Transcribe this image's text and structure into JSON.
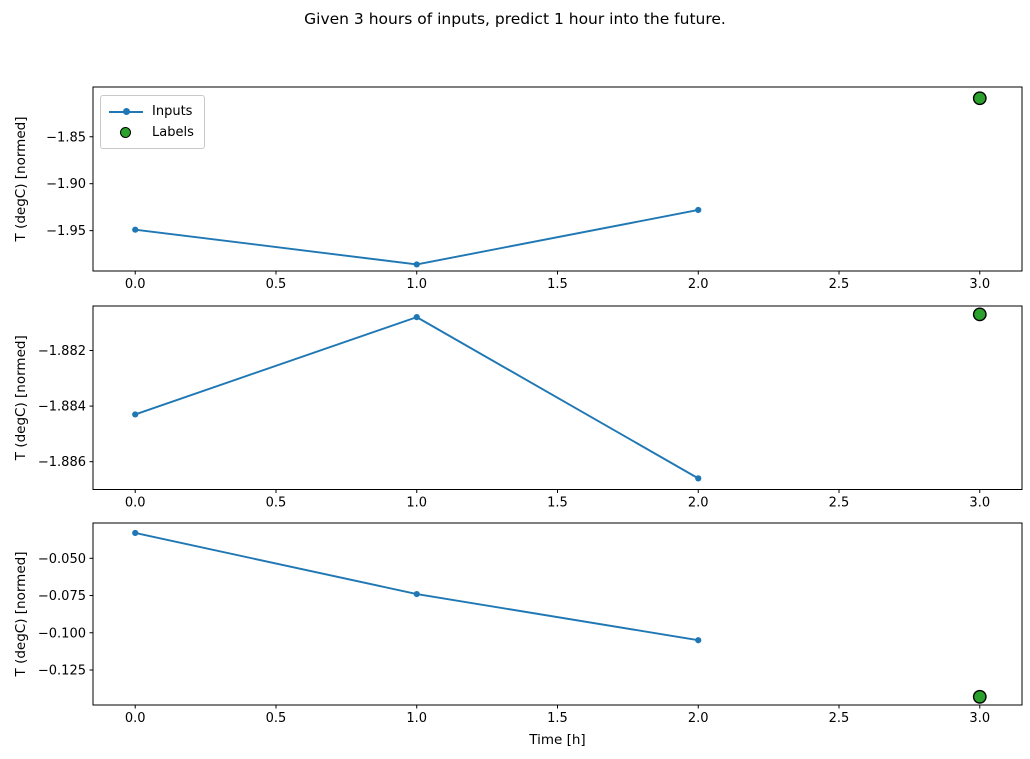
{
  "figure": {
    "title": "Given 3 hours of inputs, predict 1 hour into the future.",
    "background": "#ffffff"
  },
  "legend": {
    "position": "upper-left",
    "items": [
      {
        "label": "Inputs",
        "marker": "line-dot",
        "color": "#1f77b4"
      },
      {
        "label": "Labels",
        "marker": "circle",
        "color": "#2ca02c",
        "edge_color": "#000000"
      }
    ]
  },
  "chart_data": [
    {
      "type": "line",
      "title": "",
      "xlabel": "",
      "ylabel": "T (degC) [normed]",
      "xlim": [
        -0.15,
        3.15
      ],
      "ylim": [
        -1.993,
        -1.797
      ],
      "grid": false,
      "xtick_values": [
        0.0,
        0.5,
        1.0,
        1.5,
        2.0,
        2.5,
        3.0
      ],
      "xtick_labels": [
        "0.0",
        "0.5",
        "1.0",
        "1.5",
        "2.0",
        "2.5",
        "3.0"
      ],
      "ytick_values": [
        -1.85,
        -1.9,
        -1.95
      ],
      "ytick_labels": [
        "−1.85",
        "−1.90",
        "−1.95"
      ],
      "series": [
        {
          "name": "Inputs",
          "type": "line",
          "color": "#1f77b4",
          "x": [
            0,
            1,
            2
          ],
          "y": [
            -1.949,
            -1.986,
            -1.928
          ]
        },
        {
          "name": "Labels",
          "type": "scatter",
          "color": "#2ca02c",
          "edge_color": "#000000",
          "x": [
            3
          ],
          "y": [
            -1.809
          ]
        }
      ],
      "show_legend": true
    },
    {
      "type": "line",
      "title": "",
      "xlabel": "",
      "ylabel": "T (degC) [normed]",
      "xlim": [
        -0.15,
        3.15
      ],
      "ylim": [
        -1.887,
        -1.8804
      ],
      "grid": false,
      "xtick_values": [
        0.0,
        0.5,
        1.0,
        1.5,
        2.0,
        2.5,
        3.0
      ],
      "xtick_labels": [
        "0.0",
        "0.5",
        "1.0",
        "1.5",
        "2.0",
        "2.5",
        "3.0"
      ],
      "ytick_values": [
        -1.882,
        -1.884,
        -1.886
      ],
      "ytick_labels": [
        "−1.882",
        "−1.884",
        "−1.886"
      ],
      "series": [
        {
          "name": "Inputs",
          "type": "line",
          "color": "#1f77b4",
          "x": [
            0,
            1,
            2
          ],
          "y": [
            -1.8843,
            -1.8808,
            -1.8866
          ]
        },
        {
          "name": "Labels",
          "type": "scatter",
          "color": "#2ca02c",
          "edge_color": "#000000",
          "x": [
            3
          ],
          "y": [
            -1.8807
          ]
        }
      ],
      "show_legend": false
    },
    {
      "type": "line",
      "title": "",
      "xlabel": "Time [h]",
      "ylabel": "T (degC) [normed]",
      "xlim": [
        -0.15,
        3.15
      ],
      "ylim": [
        -0.1485,
        -0.0263
      ],
      "grid": false,
      "xtick_values": [
        0.0,
        0.5,
        1.0,
        1.5,
        2.0,
        2.5,
        3.0
      ],
      "xtick_labels": [
        "0.0",
        "0.5",
        "1.0",
        "1.5",
        "2.0",
        "2.5",
        "3.0"
      ],
      "ytick_values": [
        -0.05,
        -0.075,
        -0.1,
        -0.125
      ],
      "ytick_labels": [
        "−0.050",
        "−0.075",
        "−0.100",
        "−0.125"
      ],
      "series": [
        {
          "name": "Inputs",
          "type": "line",
          "color": "#1f77b4",
          "x": [
            0,
            1,
            2
          ],
          "y": [
            -0.033,
            -0.074,
            -0.105
          ]
        },
        {
          "name": "Labels",
          "type": "scatter",
          "color": "#2ca02c",
          "edge_color": "#000000",
          "x": [
            3
          ],
          "y": [
            -0.143
          ]
        }
      ],
      "show_legend": false
    }
  ]
}
